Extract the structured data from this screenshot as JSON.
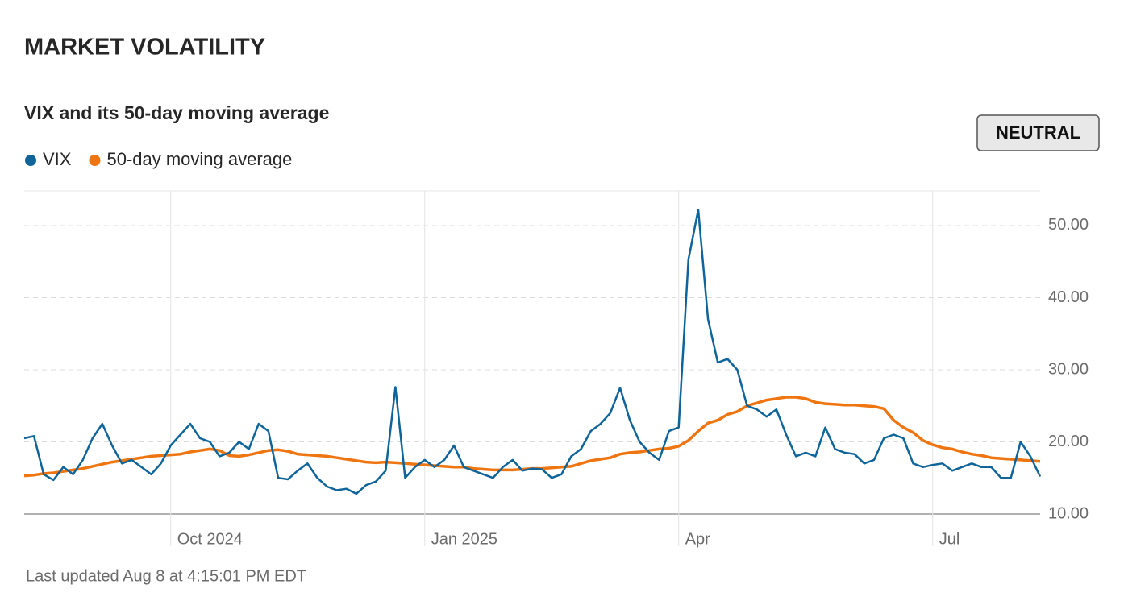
{
  "header": {
    "title": "MARKET VOLATILITY",
    "badge": "NEUTRAL"
  },
  "footer": "Last updated Aug 8 at 4:15:01 PM EDT",
  "chart_data": {
    "type": "line",
    "title": "VIX and its 50-day moving average",
    "categories": [
      null,
      null,
      null,
      null,
      null,
      null,
      null,
      null,
      null,
      null,
      null,
      null,
      null,
      null,
      null,
      "Oct 2024",
      null,
      null,
      null,
      null,
      null,
      null,
      null,
      null,
      null,
      null,
      null,
      null,
      null,
      null,
      null,
      null,
      null,
      null,
      null,
      null,
      null,
      null,
      null,
      null,
      null,
      "Jan 2025",
      null,
      null,
      null,
      null,
      null,
      null,
      null,
      null,
      null,
      null,
      null,
      null,
      null,
      null,
      null,
      null,
      null,
      null,
      null,
      null,
      null,
      null,
      null,
      null,
      null,
      "Apr",
      null,
      null,
      null,
      null,
      null,
      null,
      null,
      null,
      null,
      null,
      null,
      null,
      null,
      null,
      null,
      null,
      null,
      null,
      null,
      null,
      null,
      null,
      null,
      null,
      null,
      "Jul",
      null,
      null,
      null,
      null,
      null,
      null,
      null,
      null,
      null,
      null,
      null
    ],
    "series": [
      {
        "name": "VIX",
        "color": "#0f6499",
        "values": [
          20.5,
          20.8,
          15.5,
          14.7,
          16.5,
          15.5,
          17.5,
          20.5,
          22.5,
          19.5,
          17,
          17.5,
          16.5,
          15.5,
          17,
          19.5,
          21,
          22.5,
          20.5,
          20,
          18,
          18.5,
          20,
          19,
          22.5,
          21.5,
          15,
          14.8,
          16,
          17,
          15,
          13.8,
          13.3,
          13.5,
          12.8,
          14,
          14.5,
          16,
          27.6,
          15,
          16.5,
          17.5,
          16.5,
          17.5,
          19.5,
          16.5,
          16,
          15.5,
          15,
          16.5,
          17.5,
          16,
          16.3,
          16.2,
          15,
          15.5,
          18,
          19,
          21.5,
          22.5,
          24,
          27.5,
          23,
          20,
          18.5,
          17.5,
          21.5,
          22,
          45.3,
          52.2,
          37,
          31,
          31.5,
          30,
          25,
          24.5,
          23.5,
          24.5,
          21,
          18,
          18.5,
          18,
          22,
          19,
          18.5,
          18.3,
          17,
          17.5,
          20.5,
          21,
          20.5,
          17,
          16.5,
          16.8,
          17,
          16,
          16.5,
          17,
          16.5,
          16.5,
          15,
          15,
          20,
          18,
          15.2
        ]
      },
      {
        "name": "50-day moving average",
        "color": "#ef7511",
        "values": [
          15.3,
          15.4,
          15.6,
          15.7,
          15.9,
          16.1,
          16.3,
          16.6,
          16.9,
          17.2,
          17.4,
          17.6,
          17.8,
          18,
          18.1,
          18.2,
          18.3,
          18.6,
          18.8,
          19,
          18.8,
          18.1,
          18,
          18.2,
          18.5,
          18.8,
          18.9,
          18.7,
          18.3,
          18.2,
          18.1,
          18,
          17.8,
          17.6,
          17.4,
          17.2,
          17.1,
          17.2,
          17.1,
          17,
          16.9,
          16.8,
          16.7,
          16.6,
          16.5,
          16.5,
          16.3,
          16.2,
          16.1,
          16.1,
          16.1,
          16.2,
          16.3,
          16.3,
          16.4,
          16.5,
          16.6,
          17,
          17.4,
          17.6,
          17.8,
          18.3,
          18.5,
          18.6,
          18.8,
          19,
          19.1,
          19.4,
          20.2,
          21.5,
          22.6,
          23,
          23.8,
          24.2,
          25,
          25.4,
          25.8,
          26,
          26.2,
          26.2,
          26,
          25.5,
          25.3,
          25.2,
          25.1,
          25.1,
          25,
          24.9,
          24.6,
          23,
          22,
          21.3,
          20.2,
          19.6,
          19.2,
          19,
          18.6,
          18.3,
          18.1,
          17.8,
          17.7,
          17.6,
          17.5,
          17.4,
          17.3
        ]
      }
    ],
    "ylim": [
      10,
      54.8
    ],
    "yticks": [
      {
        "value": 10,
        "label": "10.00"
      },
      {
        "value": 20,
        "label": "20.00"
      },
      {
        "value": 30,
        "label": "30.00"
      },
      {
        "value": 40,
        "label": "40.00"
      },
      {
        "value": 50,
        "label": "50.00"
      }
    ],
    "grid": true
  }
}
